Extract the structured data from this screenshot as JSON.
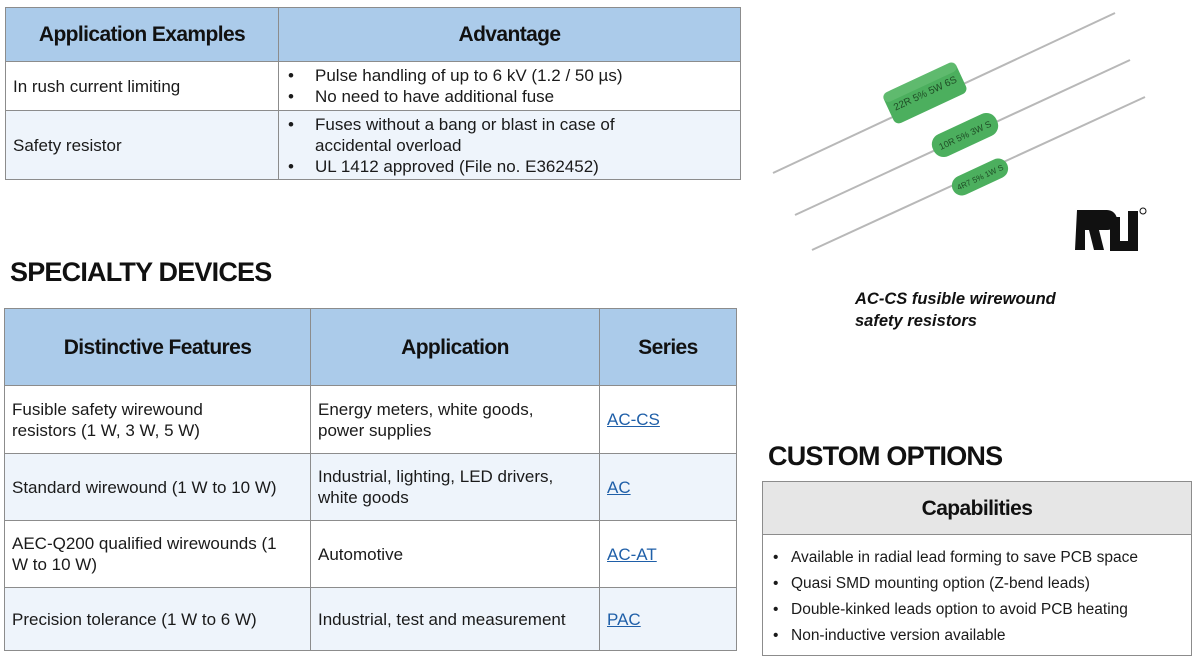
{
  "application_table": {
    "headers": [
      "Application Examples",
      "Advantage"
    ],
    "rows": [
      {
        "application": "In rush current limiting",
        "advantages": [
          "Pulse handling of up to 6 kV (1.2 / 50 µs)",
          "No need to have additional fuse"
        ]
      },
      {
        "application": "Safety resistor",
        "advantages": [
          "Fuses without a bang or blast in case of accidental overload",
          "UL 1412 approved (File no. E362452)"
        ]
      }
    ]
  },
  "specialty": {
    "heading": "SPECIALTY DEVICES",
    "headers": [
      "Distinctive Features",
      "Application",
      "Series"
    ],
    "rows": [
      {
        "feature": "Fusible safety wirewound resistors (1 W, 3 W, 5 W)",
        "application": "Energy meters, white goods, power supplies",
        "series": "AC-CS"
      },
      {
        "feature": "Standard wirewound (1 W to 10 W)",
        "application": "Industrial, lighting, LED drivers, white goods",
        "series": "AC"
      },
      {
        "feature": "AEC-Q200 qualified wirewounds (1 W to 10 W)",
        "application": "Automotive",
        "series": "AC-AT"
      },
      {
        "feature": "Precision tolerance (1 W to 6 W)",
        "application": "Industrial, test and measurement",
        "series": "PAC"
      }
    ]
  },
  "product": {
    "caption_line1": "AC-CS fusible wirewound",
    "caption_line2": "safety resistors",
    "resistor_markings": [
      "22R 5% 5W 6S",
      "10R 5% 3W S",
      "4R7 5% 1W S"
    ],
    "certification_logo": "UL"
  },
  "custom": {
    "heading": "CUSTOM OPTIONS",
    "header": "Capabilities",
    "items": [
      "Available in radial lead forming to save PCB space",
      "Quasi SMD mounting option (Z-bend leads)",
      "Double-kinked leads option to avoid PCB heating",
      "Non-inductive version available"
    ]
  },
  "colors": {
    "header_blue": "#abcbea",
    "row_alt": "#eef4fb",
    "link": "#1f5fa8",
    "resistor_green": "#4caf5e"
  }
}
